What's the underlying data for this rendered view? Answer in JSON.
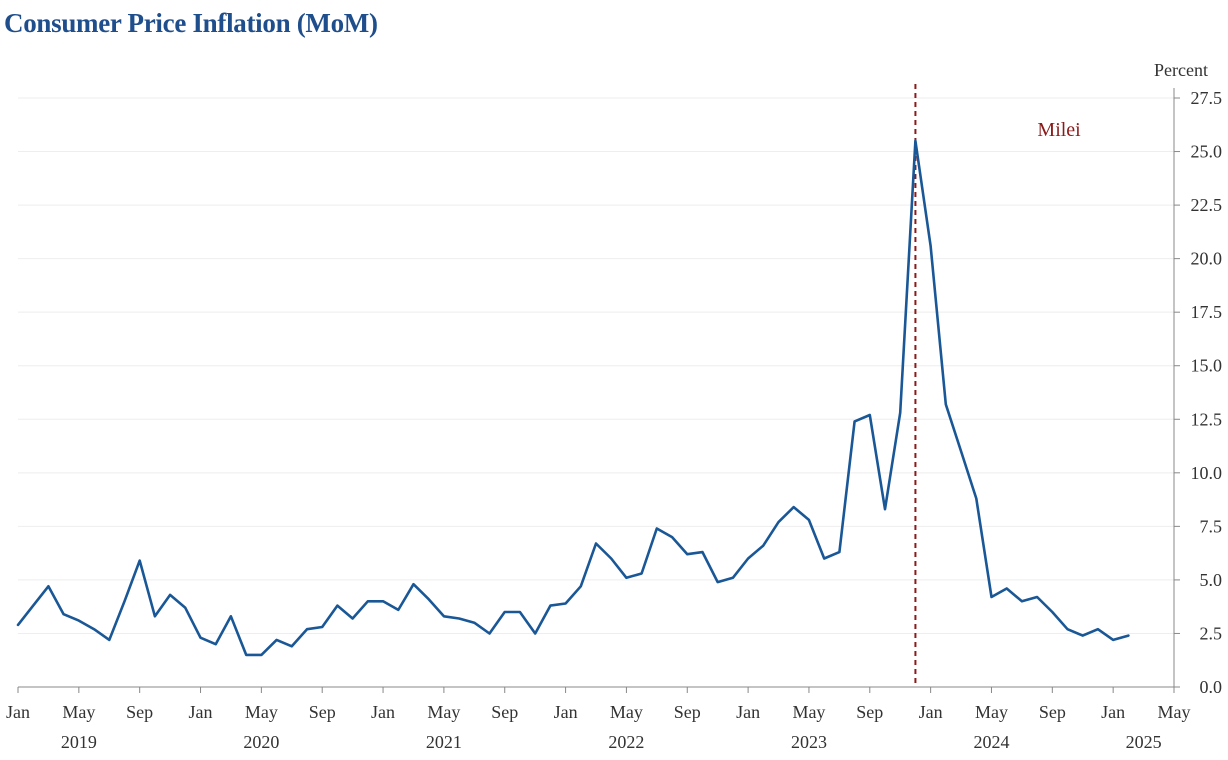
{
  "chart_data": {
    "type": "line",
    "title": "Consumer Price Inflation (MoM)",
    "unit_label": "Percent",
    "ylim": [
      0,
      27.5
    ],
    "yticks": [
      0.0,
      2.5,
      5.0,
      7.5,
      10.0,
      12.5,
      15.0,
      17.5,
      20.0,
      22.5,
      25.0,
      27.5
    ],
    "ytick_labels": [
      "0.0",
      "2.5",
      "5.0",
      "7.5",
      "10.0",
      "12.5",
      "15.0",
      "17.5",
      "20.0",
      "22.5",
      "25.0",
      "27.5"
    ],
    "x_month_ticks": [
      "Jan",
      "May",
      "Sep",
      "Jan",
      "May",
      "Sep",
      "Jan",
      "May",
      "Sep",
      "Jan",
      "May",
      "Sep",
      "Jan",
      "May",
      "Sep",
      "Jan",
      "May",
      "Sep",
      "Jan",
      "May"
    ],
    "x_year_labels": [
      "2019",
      "2020",
      "2021",
      "2022",
      "2023",
      "2024",
      "2025"
    ],
    "xlim": [
      "2019-01",
      "2025-05"
    ],
    "grid": true,
    "annotations": [
      {
        "text": "Milei",
        "x": "2023-12",
        "style": "dashed vertical line"
      }
    ],
    "series": [
      {
        "color": "#1a5796",
        "x": [
          "2019-01",
          "2019-02",
          "2019-03",
          "2019-04",
          "2019-05",
          "2019-06",
          "2019-07",
          "2019-08",
          "2019-09",
          "2019-10",
          "2019-11",
          "2019-12",
          "2020-01",
          "2020-02",
          "2020-03",
          "2020-04",
          "2020-05",
          "2020-06",
          "2020-07",
          "2020-08",
          "2020-09",
          "2020-10",
          "2020-11",
          "2020-12",
          "2021-01",
          "2021-02",
          "2021-03",
          "2021-04",
          "2021-05",
          "2021-06",
          "2021-07",
          "2021-08",
          "2021-09",
          "2021-10",
          "2021-11",
          "2021-12",
          "2022-01",
          "2022-02",
          "2022-03",
          "2022-04",
          "2022-05",
          "2022-06",
          "2022-07",
          "2022-08",
          "2022-09",
          "2022-10",
          "2022-11",
          "2022-12",
          "2023-01",
          "2023-02",
          "2023-03",
          "2023-04",
          "2023-05",
          "2023-06",
          "2023-07",
          "2023-08",
          "2023-09",
          "2023-10",
          "2023-11",
          "2023-12",
          "2024-01",
          "2024-02",
          "2024-03",
          "2024-04",
          "2024-05",
          "2024-06",
          "2024-07",
          "2024-08",
          "2024-09",
          "2024-10",
          "2024-11",
          "2024-12",
          "2025-01",
          "2025-02"
        ],
        "values": [
          2.9,
          3.8,
          4.7,
          3.4,
          3.1,
          2.7,
          2.2,
          4.0,
          5.9,
          3.3,
          4.3,
          3.7,
          2.3,
          2.0,
          3.3,
          1.5,
          1.5,
          2.2,
          1.9,
          2.7,
          2.8,
          3.8,
          3.2,
          4.0,
          4.0,
          3.6,
          4.8,
          4.1,
          3.3,
          3.2,
          3.0,
          2.5,
          3.5,
          3.5,
          2.5,
          3.8,
          3.9,
          4.7,
          6.7,
          6.0,
          5.1,
          5.3,
          7.4,
          7.0,
          6.2,
          6.3,
          4.9,
          5.1,
          6.0,
          6.6,
          7.7,
          8.4,
          7.8,
          6.0,
          6.3,
          12.4,
          12.7,
          8.3,
          12.8,
          25.5,
          20.6,
          13.2,
          11.0,
          8.8,
          4.2,
          4.6,
          4.0,
          4.2,
          3.5,
          2.7,
          2.4,
          2.7,
          2.2,
          2.4
        ]
      }
    ]
  }
}
